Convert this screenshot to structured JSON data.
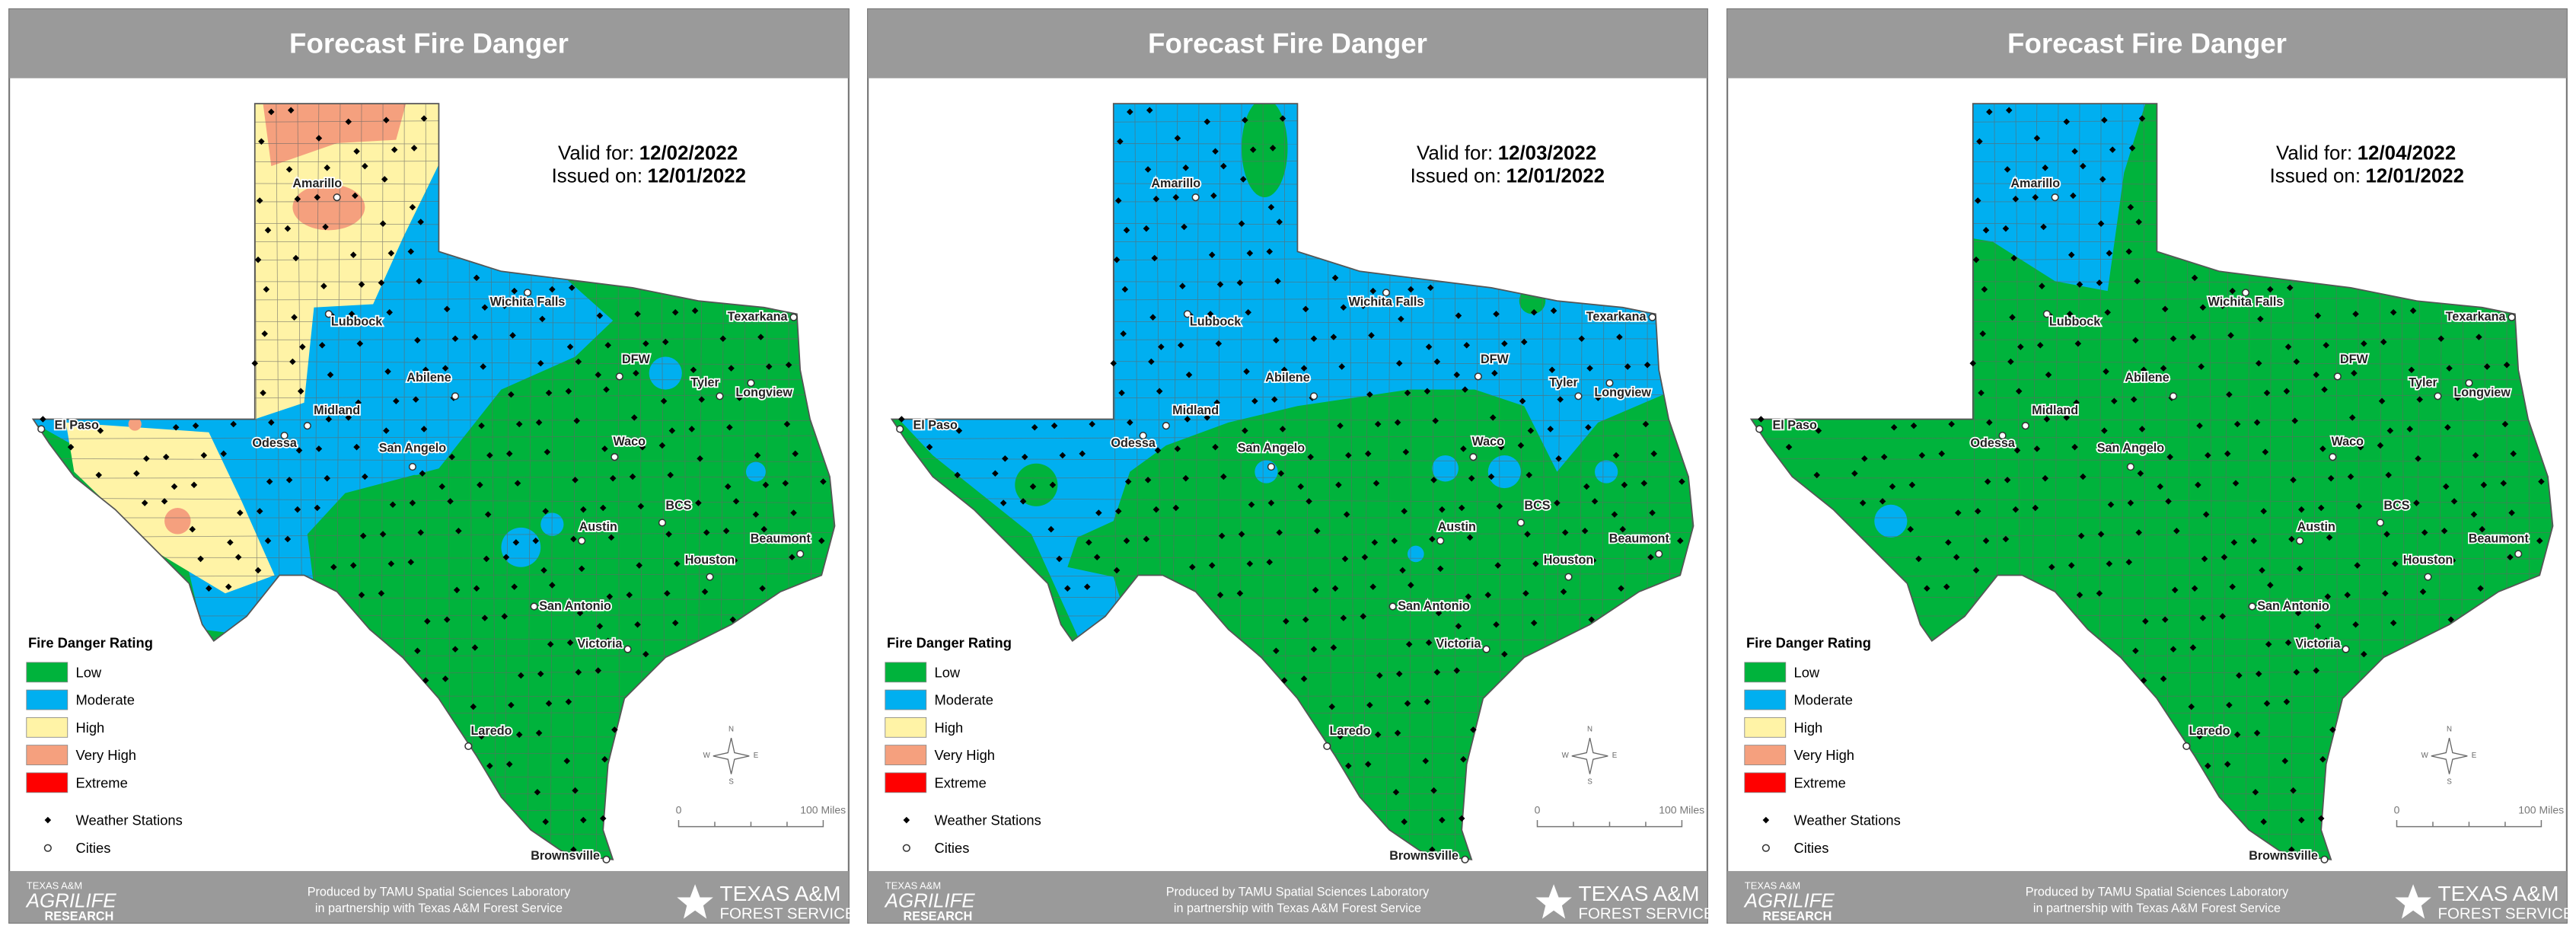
{
  "panels": [
    {
      "title": "Forecast Fire Danger",
      "valid_label": "Valid for:",
      "valid_date": "12/02/2022",
      "issued_label": "Issued on:",
      "issued_date": "12/01/2022",
      "legend": {
        "title": "Fire Danger Rating",
        "items": [
          {
            "label": "Low",
            "color": "#00b33c"
          },
          {
            "label": "Moderate",
            "color": "#00aff0"
          },
          {
            "label": "High",
            "color": "#fff3a6"
          },
          {
            "label": "Very High",
            "color": "#f5a07e"
          },
          {
            "label": "Extreme",
            "color": "#ff0000"
          }
        ],
        "stations": "Weather Stations",
        "cities": "Cities"
      },
      "cities": [
        "El Paso",
        "Amarillo",
        "Lubbock",
        "Wichita Falls",
        "Texarkana",
        "DFW",
        "Tyler",
        "Longview",
        "Midland",
        "Abilene",
        "Odessa",
        "San Angelo",
        "Waco",
        "BCS",
        "Austin",
        "Beaumont",
        "Houston",
        "San Antonio",
        "Victoria",
        "Laredo",
        "Brownsville"
      ],
      "compass": [
        "N",
        "E",
        "S",
        "W"
      ],
      "scale": [
        "0",
        "100 Miles"
      ],
      "footer": {
        "credit": [
          "Produced by TAMU Spatial Sciences Laboratory",
          "in partnership with Texas A&M Forest Service"
        ],
        "left_logo": [
          "TEXAS A&M",
          "AGRILIFE",
          "RESEARCH"
        ],
        "right_logo": [
          "TEXAS A&M",
          "FOREST SERVICE"
        ]
      }
    },
    {
      "title": "Forecast Fire Danger",
      "valid_label": "Valid for:",
      "valid_date": "12/03/2022",
      "issued_label": "Issued on:",
      "issued_date": "12/01/2022",
      "legend": {
        "title": "Fire Danger Rating",
        "items": [
          {
            "label": "Low",
            "color": "#00b33c"
          },
          {
            "label": "Moderate",
            "color": "#00aff0"
          },
          {
            "label": "High",
            "color": "#fff3a6"
          },
          {
            "label": "Very High",
            "color": "#f5a07e"
          },
          {
            "label": "Extreme",
            "color": "#ff0000"
          }
        ],
        "stations": "Weather Stations",
        "cities": "Cities"
      },
      "cities": [
        "El Paso",
        "Amarillo",
        "Lubbock",
        "Wichita Falls",
        "Texarkana",
        "DFW",
        "Tyler",
        "Longview",
        "Midland",
        "Abilene",
        "Odessa",
        "San Angelo",
        "Waco",
        "BCS",
        "Austin",
        "Beaumont",
        "Houston",
        "San Antonio",
        "Victoria",
        "Laredo",
        "Brownsville"
      ],
      "compass": [
        "N",
        "E",
        "S",
        "W"
      ],
      "scale": [
        "0",
        "100 Miles"
      ],
      "footer": {
        "credit": [
          "Produced by TAMU Spatial Sciences Laboratory",
          "in partnership with Texas A&M Forest Service"
        ],
        "left_logo": [
          "TEXAS A&M",
          "AGRILIFE",
          "RESEARCH"
        ],
        "right_logo": [
          "TEXAS A&M",
          "FOREST SERVICE"
        ]
      }
    },
    {
      "title": "Forecast Fire Danger",
      "valid_label": "Valid for:",
      "valid_date": "12/04/2022",
      "issued_label": "Issued on:",
      "issued_date": "12/01/2022",
      "legend": {
        "title": "Fire Danger Rating",
        "items": [
          {
            "label": "Low",
            "color": "#00b33c"
          },
          {
            "label": "Moderate",
            "color": "#00aff0"
          },
          {
            "label": "High",
            "color": "#fff3a6"
          },
          {
            "label": "Very High",
            "color": "#f5a07e"
          },
          {
            "label": "Extreme",
            "color": "#ff0000"
          }
        ],
        "stations": "Weather Stations",
        "cities": "Cities"
      },
      "cities": [
        "El Paso",
        "Amarillo",
        "Lubbock",
        "Wichita Falls",
        "Texarkana",
        "DFW",
        "Tyler",
        "Longview",
        "Midland",
        "Abilene",
        "Odessa",
        "San Angelo",
        "Waco",
        "BCS",
        "Austin",
        "Beaumont",
        "Houston",
        "San Antonio",
        "Victoria",
        "Laredo",
        "Brownsville"
      ],
      "compass": [
        "N",
        "E",
        "S",
        "W"
      ],
      "scale": [
        "0",
        "100 Miles"
      ],
      "footer": {
        "credit": [
          "Produced by TAMU Spatial Sciences Laboratory",
          "in partnership with Texas A&M Forest Service"
        ],
        "left_logo": [
          "TEXAS A&M",
          "AGRILIFE",
          "RESEARCH"
        ],
        "right_logo": [
          "TEXAS A&M",
          "FOREST SERVICE"
        ]
      }
    }
  ]
}
